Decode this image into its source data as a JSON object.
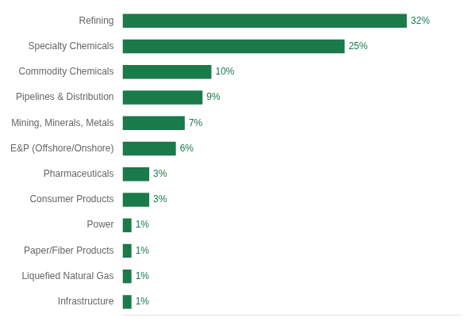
{
  "chart_data": {
    "type": "bar",
    "orientation": "horizontal",
    "categories": [
      "Infrastructure",
      "Liquefied Natural Gas",
      "Paper/Fiber Products",
      "Power",
      "Consumer Products",
      "Pharmaceuticals",
      "E&P (Offshore/Onshore)",
      "Mining, Minerals, Metals",
      "Pipelines & Distribution",
      "Commodity Chemicals",
      "Specialty Chemicals",
      "Refining"
    ],
    "values": [
      1,
      1,
      1,
      1,
      3,
      3,
      6,
      7,
      9,
      10,
      25,
      32
    ],
    "value_labels": [
      "1%",
      "1%",
      "1%",
      "1%",
      "3%",
      "3%",
      "6%",
      "7%",
      "9%",
      "10%",
      "25%",
      "32%"
    ],
    "color": "#1a7a4a",
    "xlim": [
      0,
      38
    ],
    "grid": false,
    "data_labels": true,
    "tick_labels": "y"
  }
}
